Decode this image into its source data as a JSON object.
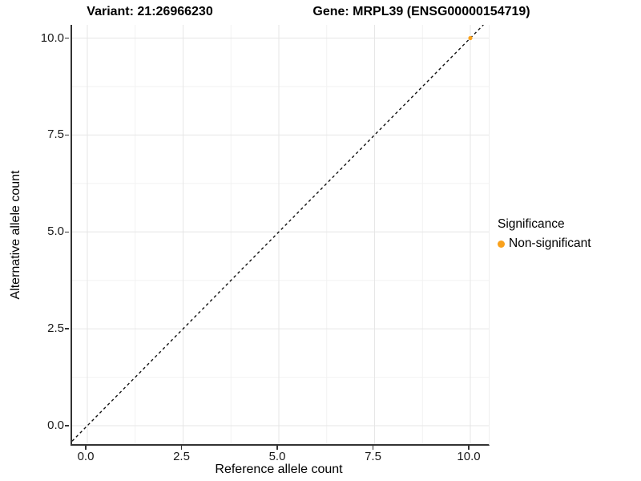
{
  "titles": {
    "variant": "Variant: 21:26966230",
    "gene": "Gene: MRPL39 (ENSG00000154719)"
  },
  "chart_data": {
    "type": "scatter",
    "points": [
      {
        "x": 10,
        "y": 10,
        "series": "Non-significant"
      }
    ],
    "series": [
      {
        "name": "Non-significant",
        "color": "#F9A11C"
      }
    ],
    "identity_line": {
      "equation": "y = x",
      "style": "dashed",
      "color": "#111111"
    },
    "xlabel": "Reference allele count",
    "ylabel": "Alternative allele count",
    "xlim": [
      -0.4,
      10.48
    ],
    "ylim": [
      -0.48,
      10.34
    ],
    "x_ticks": [
      0.0,
      2.5,
      5.0,
      7.5,
      10.0
    ],
    "y_ticks": [
      0.0,
      2.5,
      5.0,
      7.5,
      10.0
    ],
    "x_tick_labels": [
      "0.0",
      "2.5",
      "5.0",
      "7.5",
      "10.0"
    ],
    "y_tick_labels": [
      "0.0",
      "2.5",
      "5.0",
      "7.5",
      "10.0"
    ],
    "minor_ticks": [
      1.25,
      3.75,
      6.25,
      8.75
    ],
    "grid": true,
    "legend": {
      "title": "Significance",
      "position": "right",
      "entries": [
        {
          "label": "Non-significant",
          "color": "#F9A11C"
        }
      ]
    }
  },
  "colors": {
    "accent_orange": "#F9A11C",
    "axis_line": "#333333",
    "grid_major": "#E6E6E6",
    "grid_minor": "#F2F2F2",
    "dashed_line": "#111111",
    "axis_text": "#1a1a1a"
  }
}
